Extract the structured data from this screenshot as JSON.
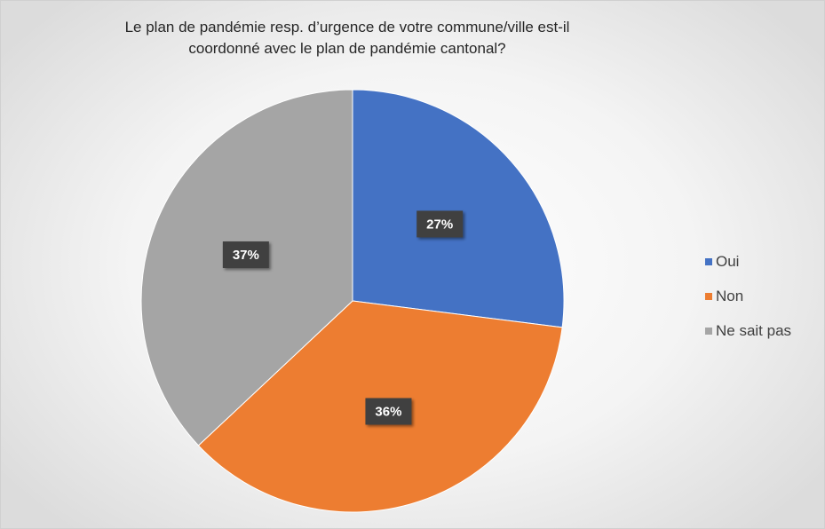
{
  "chart_data": {
    "type": "pie",
    "title_lines": [
      "Le plan de pandémie resp. d’urgence de votre commune/ville est-il",
      "coordonné avec le plan de pandémie cantonal?"
    ],
    "categories": [
      "Oui",
      "Non",
      "Ne sait pas"
    ],
    "values": [
      27,
      36,
      37
    ],
    "value_labels": [
      "27%",
      "36%",
      "37%"
    ],
    "colors": [
      "#4472c4",
      "#ed7d31",
      "#a5a5a5"
    ],
    "start_angle_deg": 0,
    "direction": "clockwise",
    "legend_position": "right"
  }
}
